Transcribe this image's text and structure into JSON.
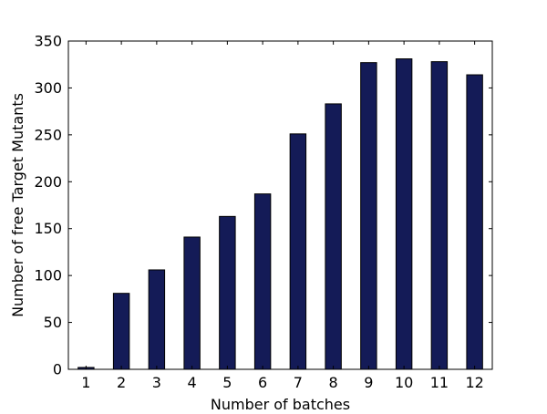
{
  "chart_data": {
    "type": "bar",
    "title": "",
    "xlabel": "Number of batches",
    "ylabel": "Number of free Target Mutants",
    "categories": [
      "1",
      "2",
      "3",
      "4",
      "5",
      "6",
      "7",
      "8",
      "9",
      "10",
      "11",
      "12"
    ],
    "values": [
      2,
      81,
      106,
      141,
      163,
      187,
      251,
      283,
      327,
      331,
      328,
      314
    ],
    "ylim": [
      0,
      350
    ],
    "yticks": [
      0,
      50,
      100,
      150,
      200,
      250,
      300,
      350
    ],
    "grid": false,
    "legend": "none",
    "bar_color": "#141b57",
    "bar_edge_color": "#000000"
  }
}
